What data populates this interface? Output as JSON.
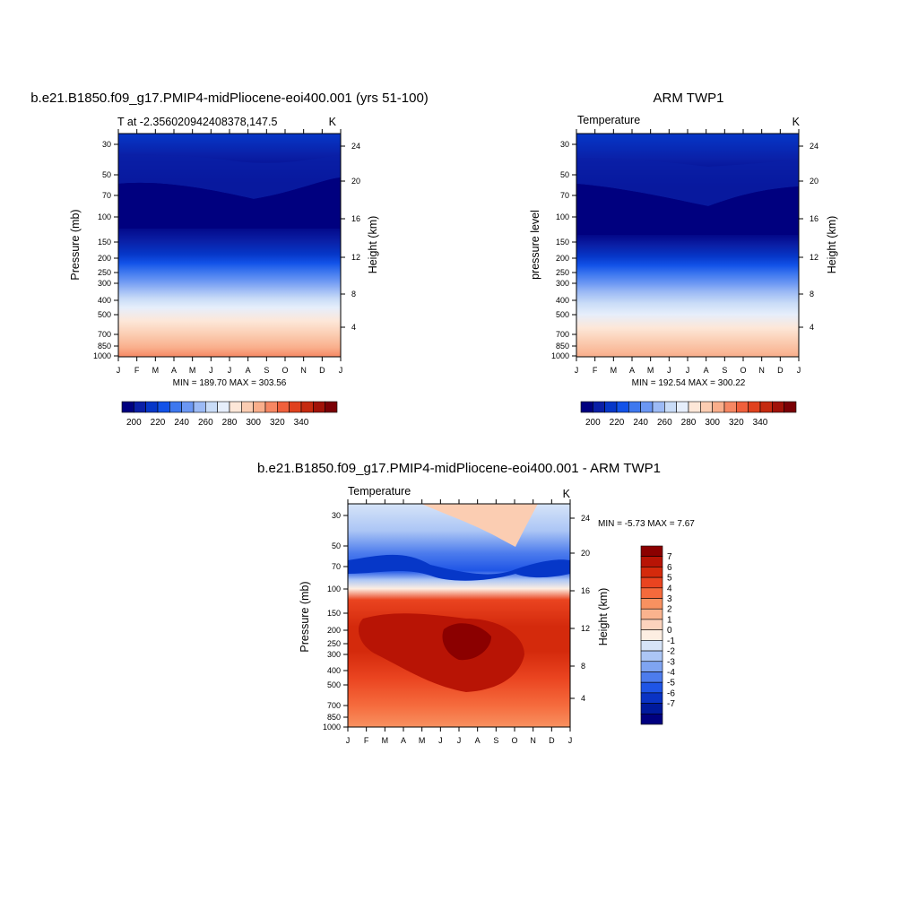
{
  "chart_data": [
    {
      "type": "heatmap",
      "title": "b.e21.B1850.f09_g17.PMIP4-midPliocene-eoi400.001 (yrs 51-100)",
      "subtitle_left": "T at -2.356020942408378,147.5",
      "units": "K",
      "ylabel": "Pressure (mb)",
      "ylabel_right": "Height (km)",
      "x_ticks": [
        "J",
        "F",
        "M",
        "A",
        "M",
        "J",
        "J",
        "A",
        "S",
        "O",
        "N",
        "D",
        "J"
      ],
      "y_ticks": [
        "30",
        "50",
        "70",
        "100",
        "150",
        "200",
        "250",
        "300",
        "400",
        "500",
        "700",
        "850",
        "1000"
      ],
      "y_right_ticks": [
        "24",
        "20",
        "16",
        "12",
        "8",
        "4"
      ],
      "stats": "MIN = 189.70 MAX = 303.56",
      "colorbar": {
        "labels": [
          "200",
          "220",
          "240",
          "260",
          "280",
          "300",
          "320",
          "340"
        ],
        "colors": [
          "#00007f",
          "#0a1fa6",
          "#0637c8",
          "#1252e8",
          "#3e78ef",
          "#6b97f3",
          "#9cbaf5",
          "#c9dcf7",
          "#e6eefb",
          "#fde7d8",
          "#fbcdb2",
          "#f9ae8b",
          "#f68763",
          "#f0603c",
          "#e0411e",
          "#c52a10",
          "#a11208",
          "#7a0005"
        ]
      }
    },
    {
      "type": "heatmap",
      "title": "ARM TWP1",
      "subtitle_left": "Temperature",
      "units": "K",
      "ylabel": "pressure level",
      "ylabel_right": "Height (km)",
      "x_ticks": [
        "J",
        "F",
        "M",
        "A",
        "M",
        "J",
        "J",
        "A",
        "S",
        "O",
        "N",
        "D",
        "J"
      ],
      "y_ticks": [
        "30",
        "50",
        "70",
        "100",
        "150",
        "200",
        "250",
        "300",
        "400",
        "500",
        "700",
        "850",
        "1000"
      ],
      "y_right_ticks": [
        "24",
        "20",
        "16",
        "12",
        "8",
        "4"
      ],
      "stats": "MIN = 192.54 MAX = 300.22",
      "colorbar": {
        "labels": [
          "200",
          "220",
          "240",
          "260",
          "280",
          "300",
          "320",
          "340"
        ],
        "colors": [
          "#00007f",
          "#0a1fa6",
          "#0637c8",
          "#1252e8",
          "#3e78ef",
          "#6b97f3",
          "#9cbaf5",
          "#c9dcf7",
          "#e6eefb",
          "#fde7d8",
          "#fbcdb2",
          "#f9ae8b",
          "#f68763",
          "#f0603c",
          "#e0411e",
          "#c52a10",
          "#a11208",
          "#7a0005"
        ]
      }
    },
    {
      "type": "heatmap",
      "title": "b.e21.B1850.f09_g17.PMIP4-midPliocene-eoi400.001 - ARM TWP1",
      "subtitle_left": "Temperature",
      "units": "K",
      "ylabel": "Pressure (mb)",
      "ylabel_right": "Height (km)",
      "x_ticks": [
        "J",
        "F",
        "M",
        "A",
        "M",
        "J",
        "J",
        "A",
        "S",
        "O",
        "N",
        "D",
        "J"
      ],
      "y_ticks": [
        "30",
        "50",
        "70",
        "100",
        "150",
        "200",
        "250",
        "300",
        "400",
        "500",
        "700",
        "850",
        "1000"
      ],
      "y_right_ticks": [
        "24",
        "20",
        "16",
        "12",
        "8",
        "4"
      ],
      "stats": "MIN =  -5.73 MAX =   7.67",
      "colorbar": {
        "labels": [
          "7",
          "6",
          "5",
          "4",
          "3",
          "2",
          "1",
          "0",
          "-1",
          "-2",
          "-3",
          "-4",
          "-5",
          "-6",
          "-7"
        ],
        "colors": [
          "#8b0000",
          "#b81405",
          "#d42a0c",
          "#ea4420",
          "#f56a3c",
          "#f89160",
          "#fab38e",
          "#fcd3bd",
          "#fdeee2",
          "#d6e4f8",
          "#acc6f5",
          "#7fa4f1",
          "#4d7ced",
          "#1f55e6",
          "#0a33c4",
          "#001a9c",
          "#00007f"
        ]
      }
    }
  ]
}
